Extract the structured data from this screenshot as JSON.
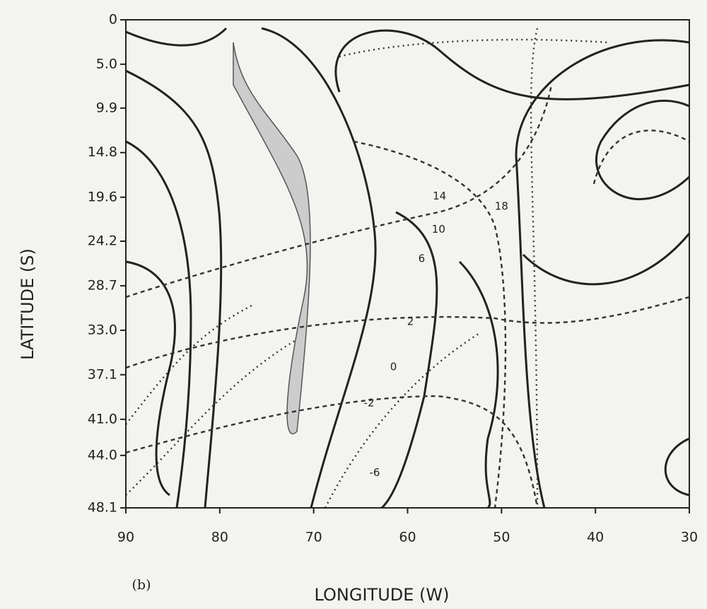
{
  "chart_data": {
    "type": "contour",
    "panel_label": "(b)",
    "x_label": "LONGITUDE (W)",
    "y_label": "LATITUDE (S)",
    "xlim": [
      90,
      30
    ],
    "xticks": [
      90,
      80,
      70,
      60,
      50,
      40,
      30
    ],
    "ylim": [
      0,
      48.1
    ],
    "yscale": "mercator",
    "yticks": [
      0,
      {
        "value": 5,
        "label": "5.0"
      },
      9.9,
      14.8,
      19.6,
      24.2,
      28.7,
      {
        "value": 33,
        "label": "33.0"
      },
      37.1,
      {
        "value": 41,
        "label": "41.0"
      },
      {
        "value": 44,
        "label": "44.0"
      },
      48.1
    ],
    "contour_labels": [
      {
        "text": "14",
        "x": 56.6,
        "y": 19.5
      },
      {
        "text": "18",
        "x": 50,
        "y": 20.6
      },
      {
        "text": "10",
        "x": 56.7,
        "y": 23
      },
      {
        "text": "6",
        "x": 58.5,
        "y": 26
      },
      {
        "text": "2",
        "x": 59.7,
        "y": 32.2
      },
      {
        "text": "0",
        "x": 61.5,
        "y": 36.4
      },
      {
        "text": "-2",
        "x": 64.1,
        "y": 39.6
      },
      {
        "text": "-6",
        "x": 63.5,
        "y": 45.4
      }
    ]
  }
}
